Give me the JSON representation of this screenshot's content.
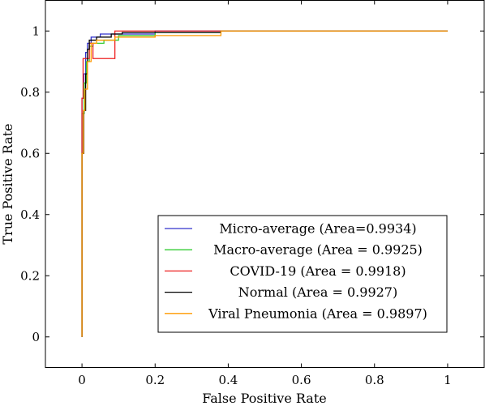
{
  "chart_data": {
    "type": "line",
    "title": "",
    "xlabel": "False Positive Rate",
    "ylabel": "True Positive Rate",
    "xlim": [
      -0.1,
      1.1
    ],
    "ylim": [
      -0.1,
      1.1
    ],
    "xticks": [
      0,
      0.2,
      0.4,
      0.6,
      0.8,
      1
    ],
    "yticks": [
      0,
      0.2,
      0.4,
      0.6,
      0.8,
      1
    ],
    "xtick_labels": [
      "0",
      "0.2",
      "0.4",
      "0.6",
      "0.8",
      "1"
    ],
    "ytick_labels": [
      "0",
      "0.2",
      "0.4",
      "0.6",
      "0.8",
      "1"
    ],
    "grid": false,
    "legend_position": "lower-right",
    "series": [
      {
        "name": "Micro-average (Area=0.9934)",
        "color": "#3333cc",
        "points": [
          [
            0,
            0
          ],
          [
            0,
            0.78
          ],
          [
            0.005,
            0.78
          ],
          [
            0.005,
            0.86
          ],
          [
            0.01,
            0.86
          ],
          [
            0.01,
            0.93
          ],
          [
            0.015,
            0.93
          ],
          [
            0.015,
            0.96
          ],
          [
            0.025,
            0.96
          ],
          [
            0.025,
            0.98
          ],
          [
            0.05,
            0.98
          ],
          [
            0.05,
            0.99
          ],
          [
            0.2,
            0.99
          ],
          [
            0.2,
            1
          ],
          [
            1,
            1
          ]
        ]
      },
      {
        "name": "Macro-average (Area = 0.9925)",
        "color": "#33cc33",
        "points": [
          [
            0,
            0
          ],
          [
            0,
            0.73
          ],
          [
            0.006,
            0.73
          ],
          [
            0.006,
            0.83
          ],
          [
            0.012,
            0.83
          ],
          [
            0.012,
            0.9
          ],
          [
            0.02,
            0.9
          ],
          [
            0.02,
            0.95
          ],
          [
            0.03,
            0.95
          ],
          [
            0.03,
            0.96
          ],
          [
            0.06,
            0.96
          ],
          [
            0.06,
            0.97
          ],
          [
            0.1,
            0.97
          ],
          [
            0.1,
            0.985
          ],
          [
            0.2,
            0.985
          ],
          [
            0.2,
            0.995
          ],
          [
            0.38,
            0.995
          ],
          [
            0.38,
            1
          ],
          [
            1,
            1
          ]
        ]
      },
      {
        "name": "COVID-19 (Area = 0.9918)",
        "color": "#ee2222",
        "points": [
          [
            0,
            0
          ],
          [
            0,
            0.78
          ],
          [
            0.003,
            0.78
          ],
          [
            0.003,
            0.91
          ],
          [
            0.02,
            0.91
          ],
          [
            0.02,
            0.96
          ],
          [
            0.03,
            0.96
          ],
          [
            0.03,
            0.91
          ],
          [
            0.09,
            0.91
          ],
          [
            0.09,
            1
          ],
          [
            1,
            1
          ]
        ]
      },
      {
        "name": "Normal (Area = 0.9927)",
        "color": "#000000",
        "points": [
          [
            0,
            0
          ],
          [
            0,
            0.6
          ],
          [
            0.005,
            0.6
          ],
          [
            0.005,
            0.74
          ],
          [
            0.01,
            0.74
          ],
          [
            0.01,
            0.86
          ],
          [
            0.015,
            0.86
          ],
          [
            0.015,
            0.94
          ],
          [
            0.02,
            0.94
          ],
          [
            0.02,
            0.97
          ],
          [
            0.04,
            0.97
          ],
          [
            0.04,
            0.98
          ],
          [
            0.08,
            0.98
          ],
          [
            0.08,
            0.99
          ],
          [
            0.11,
            0.99
          ],
          [
            0.11,
            0.995
          ],
          [
            0.38,
            0.995
          ],
          [
            0.38,
            1
          ],
          [
            1,
            1
          ]
        ]
      },
      {
        "name": "Viral Pneumonia (Area = 0.9897)",
        "color": "#ff9900",
        "points": [
          [
            0,
            0
          ],
          [
            0,
            0.6
          ],
          [
            0.004,
            0.6
          ],
          [
            0.004,
            0.74
          ],
          [
            0.008,
            0.74
          ],
          [
            0.008,
            0.81
          ],
          [
            0.015,
            0.81
          ],
          [
            0.015,
            0.9
          ],
          [
            0.025,
            0.9
          ],
          [
            0.025,
            0.96
          ],
          [
            0.04,
            0.96
          ],
          [
            0.04,
            0.97
          ],
          [
            0.09,
            0.97
          ],
          [
            0.09,
            0.98
          ],
          [
            0.2,
            0.98
          ],
          [
            0.2,
            0.985
          ],
          [
            0.38,
            0.985
          ],
          [
            0.38,
            1
          ],
          [
            1,
            1
          ]
        ]
      }
    ]
  }
}
